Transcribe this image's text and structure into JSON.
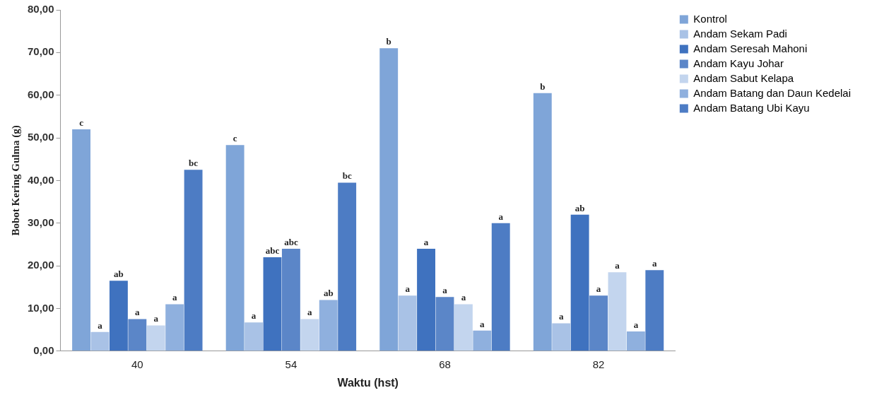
{
  "chart_data": {
    "type": "bar",
    "xlabel": "Waktu (hst)",
    "ylabel": "Bobot Kering Gulma (g)",
    "categories": [
      "40",
      "54",
      "68",
      "82"
    ],
    "ylim": [
      0,
      80
    ],
    "yticks": [
      {
        "value": 0,
        "label": "0,00"
      },
      {
        "value": 10,
        "label": "10,00"
      },
      {
        "value": 20,
        "label": "20,00"
      },
      {
        "value": 30,
        "label": "30,00"
      },
      {
        "value": 40,
        "label": "40,00"
      },
      {
        "value": 50,
        "label": "50,00"
      },
      {
        "value": 60,
        "label": "60,00"
      },
      {
        "value": 70,
        "label": "70,00"
      },
      {
        "value": 80,
        "label": "80,00"
      }
    ],
    "grid": false,
    "legend": "right",
    "series": [
      {
        "name": "Kontrol",
        "color": "#7fa5d8",
        "values": [
          52,
          48.3,
          71,
          60.5
        ],
        "value_labels": [
          "c",
          "c",
          "b",
          "b"
        ]
      },
      {
        "name": "Andam Sekam Padi",
        "color": "#a9c2e6",
        "values": [
          4.5,
          6.7,
          13,
          6.5
        ],
        "value_labels": [
          "a",
          "a",
          "a",
          "a"
        ]
      },
      {
        "name": "Andam Seresah Mahoni",
        "color": "#3f72bf",
        "values": [
          16.5,
          22,
          24,
          32
        ],
        "value_labels": [
          "ab",
          "abc",
          "a",
          "ab"
        ]
      },
      {
        "name": "Andam Kayu Johar",
        "color": "#5b86c8",
        "values": [
          7.5,
          24,
          12.7,
          13
        ],
        "value_labels": [
          "a",
          "abc",
          "a",
          "a"
        ]
      },
      {
        "name": "Andam Sabut Kelapa",
        "color": "#c3d5ee",
        "values": [
          6,
          7.5,
          11,
          18.5
        ],
        "value_labels": [
          "a",
          "a",
          "a",
          "a"
        ]
      },
      {
        "name": "Andam Batang dan Daun Kedelai",
        "color": "#8fb0de",
        "values": [
          11,
          12,
          4.8,
          4.6
        ],
        "value_labels": [
          "a",
          "ab",
          "a",
          "a"
        ]
      },
      {
        "name": "Andam Batang Ubi Kayu",
        "color": "#4d7cc4",
        "values": [
          42.5,
          39.5,
          30,
          19
        ],
        "value_labels": [
          "bc",
          "bc",
          "a",
          "a"
        ]
      }
    ]
  }
}
